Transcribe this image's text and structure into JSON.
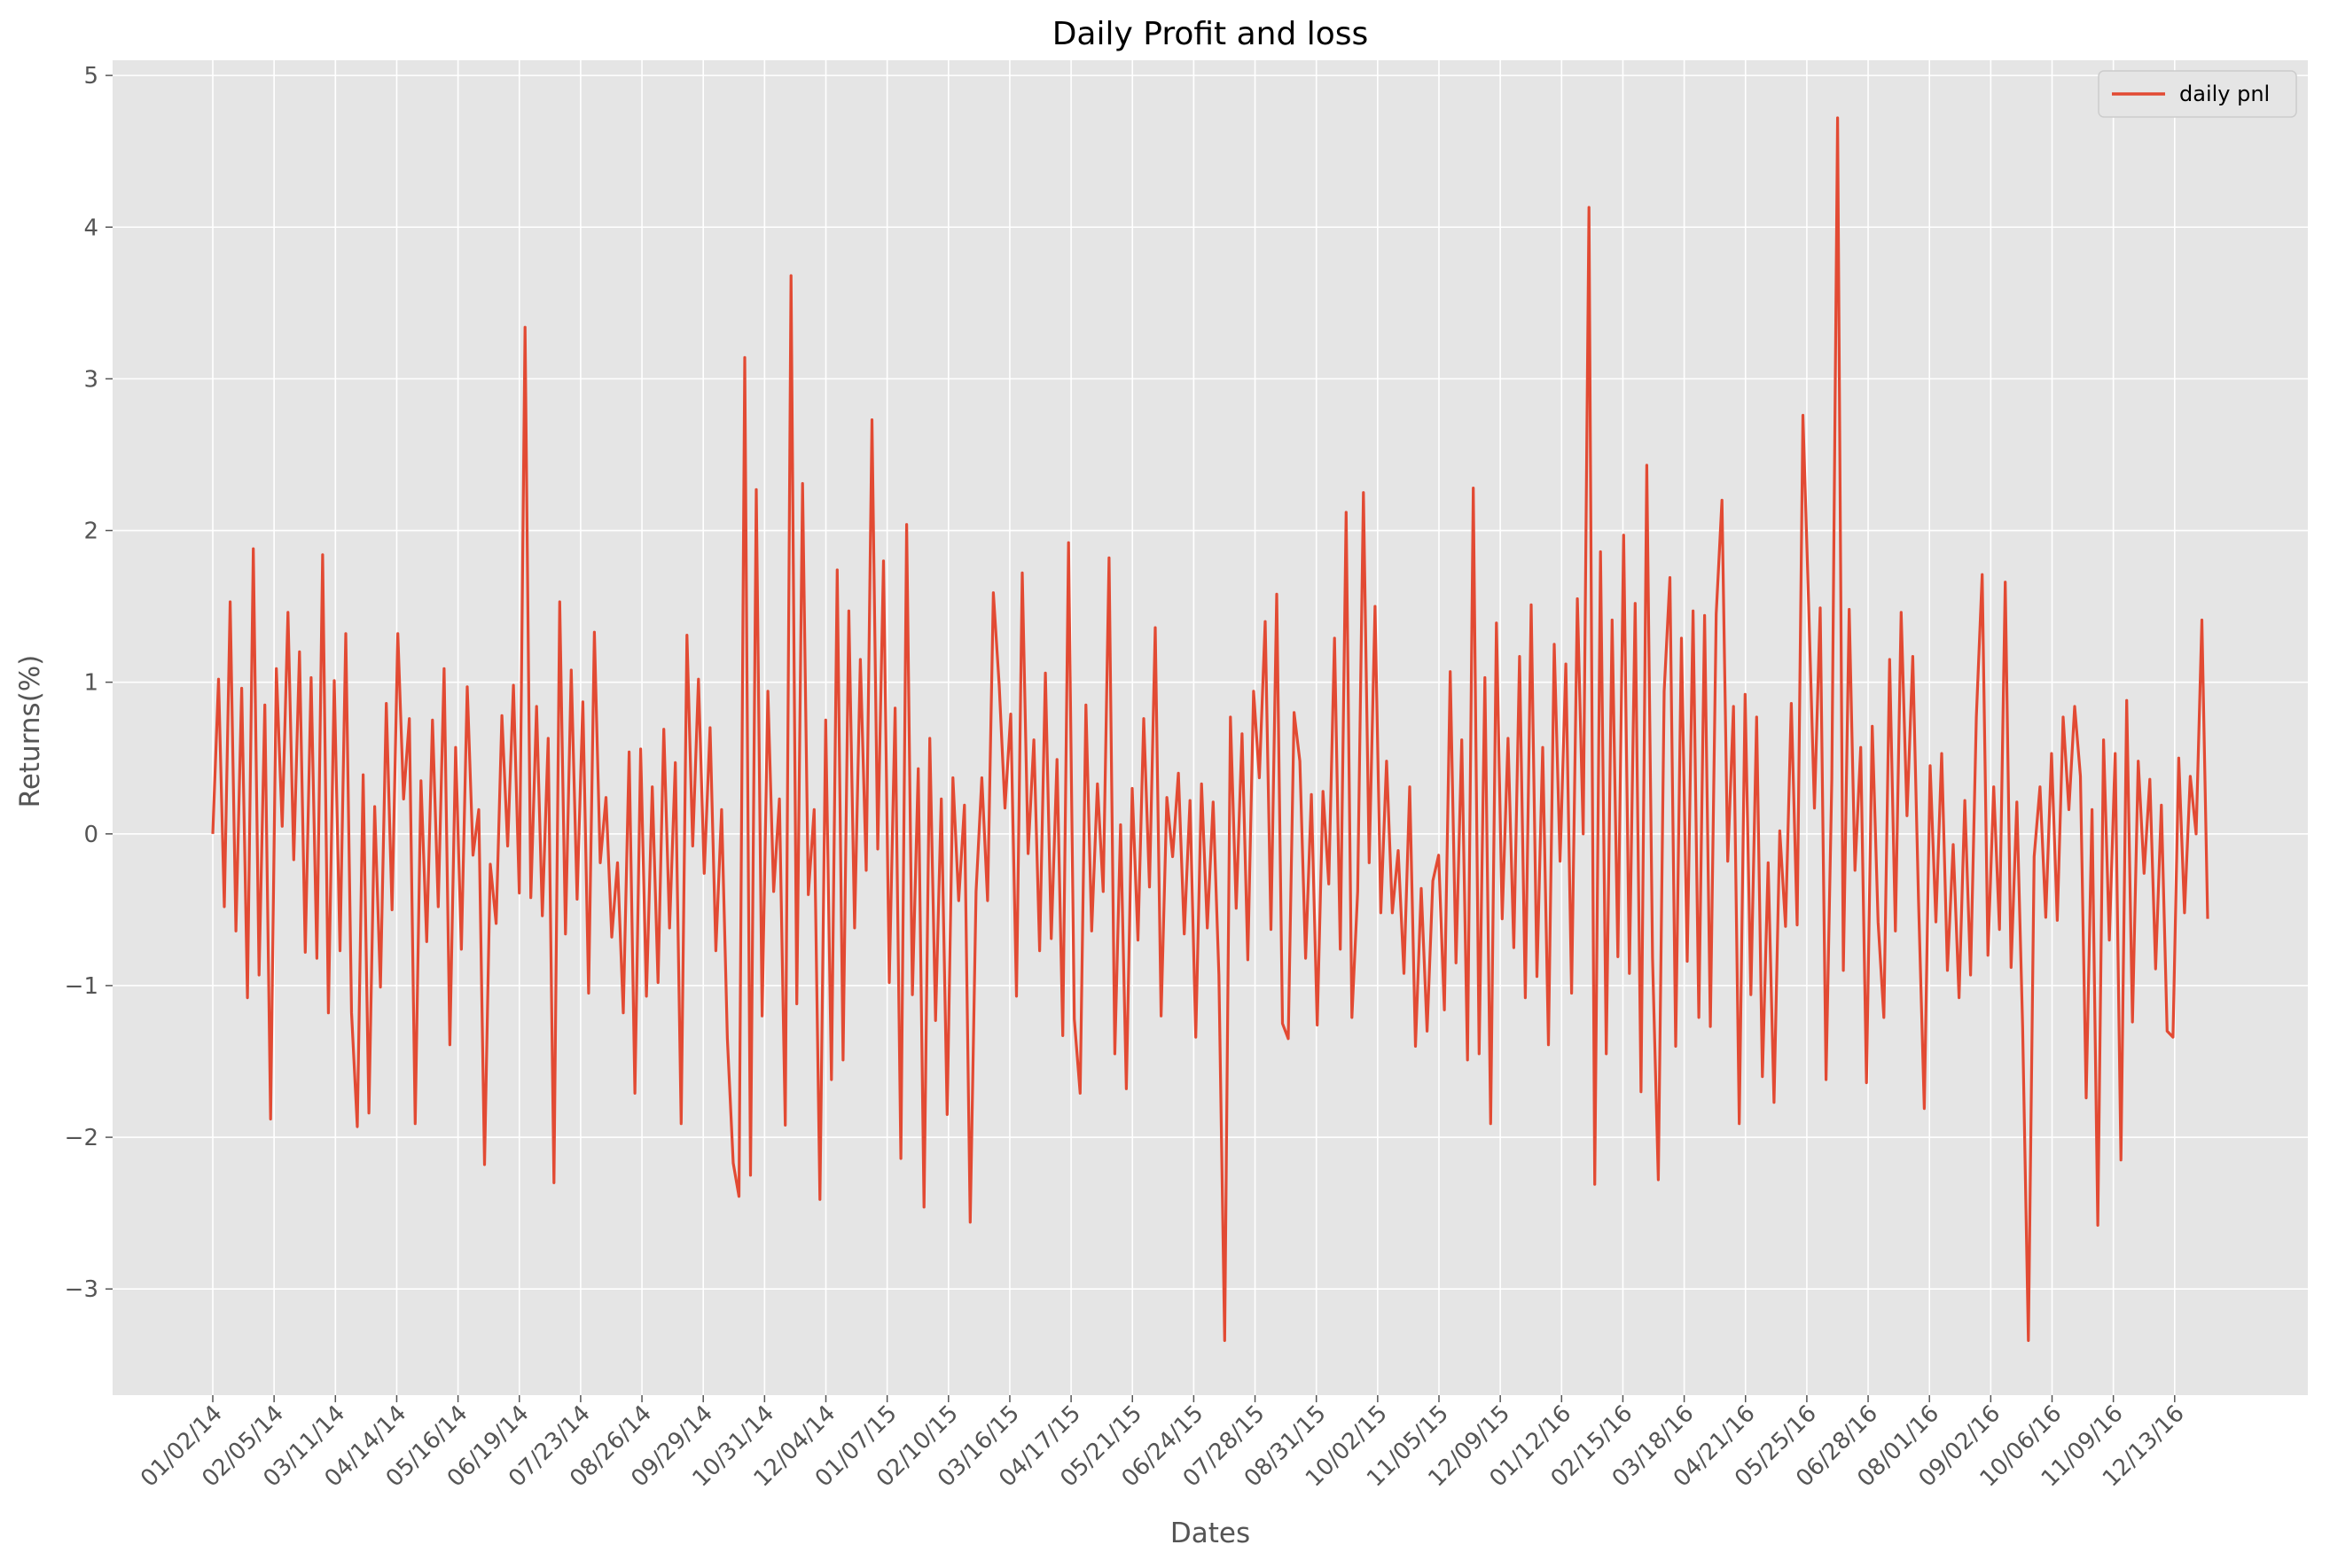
{
  "chart_data": {
    "type": "line",
    "title": "Daily Profit and loss",
    "xlabel": "Dates",
    "ylabel": "Returns(%)",
    "ylim": [
      -3.7,
      5.1
    ],
    "yticks": [
      -3,
      -2,
      -1,
      0,
      1,
      2,
      3,
      4,
      5
    ],
    "ytick_labels": [
      "−3",
      "−2",
      "−1",
      "0",
      "1",
      "2",
      "3",
      "4",
      "5"
    ],
    "xticks": [
      "01/02/14",
      "02/05/14",
      "03/11/14",
      "04/14/14",
      "05/16/14",
      "06/19/14",
      "07/23/14",
      "08/26/14",
      "09/29/14",
      "10/31/14",
      "12/04/14",
      "01/07/15",
      "02/10/15",
      "03/16/15",
      "04/17/15",
      "05/21/15",
      "06/24/15",
      "07/28/15",
      "08/31/15",
      "10/02/15",
      "11/05/15",
      "12/09/15",
      "01/12/16",
      "02/15/16",
      "03/18/16",
      "04/21/16",
      "05/25/16",
      "06/28/16",
      "08/01/16",
      "09/02/16",
      "10/06/16",
      "11/09/16",
      "12/13/16"
    ],
    "x_step_days": 24,
    "grid": true,
    "background": "#E5E5E5",
    "legend": {
      "position": "top-right",
      "entries": [
        "daily pnl"
      ]
    },
    "series": [
      {
        "name": "daily pnl",
        "color": "#E24A33",
        "values": [
          0.0,
          1.02,
          -0.48,
          1.53,
          -0.64,
          0.96,
          -1.08,
          1.88,
          -0.93,
          0.85,
          -1.88,
          1.09,
          0.05,
          1.46,
          -0.17,
          1.2,
          -0.78,
          1.03,
          -0.82,
          1.84,
          -1.18,
          1.01,
          -0.77,
          1.32,
          -1.18,
          -1.93,
          0.39,
          -1.84,
          0.18,
          -1.01,
          0.86,
          -0.5,
          1.32,
          0.23,
          0.76,
          -1.91,
          0.35,
          -0.71,
          0.75,
          -0.48,
          1.09,
          -1.39,
          0.57,
          -0.76,
          0.97,
          -0.14,
          0.16,
          -2.18,
          -0.2,
          -0.59,
          0.78,
          -0.08,
          0.98,
          -0.39,
          3.34,
          -0.42,
          0.84,
          -0.54,
          0.63,
          -2.3,
          1.53,
          -0.66,
          1.08,
          -0.43,
          0.87,
          -1.05,
          1.33,
          -0.19,
          0.24,
          -0.68,
          -0.19,
          -1.18,
          0.54,
          -1.71,
          0.56,
          -1.07,
          0.31,
          -0.98,
          0.69,
          -0.62,
          0.47,
          -1.91,
          1.31,
          -0.08,
          1.02,
          -0.26,
          0.7,
          -0.77,
          0.16,
          -1.35,
          -2.17,
          -2.39,
          3.14,
          -2.25,
          2.27,
          -1.2,
          0.94,
          -0.38,
          0.23,
          -1.92,
          3.68,
          -1.12,
          2.31,
          -0.4,
          0.16,
          -2.41,
          0.75,
          -1.62,
          1.74,
          -1.49,
          1.47,
          -0.62,
          1.15,
          -0.24,
          2.73,
          -0.1,
          1.8,
          -0.98,
          0.83,
          -2.14,
          2.04,
          -1.06,
          0.43,
          -2.46,
          0.63,
          -1.23,
          0.23,
          -1.85,
          0.37,
          -0.44,
          0.19,
          -2.56,
          -0.38,
          0.37,
          -0.44,
          1.59,
          0.98,
          0.17,
          0.79,
          -1.07,
          1.72,
          -0.13,
          0.62,
          -0.77,
          1.06,
          -0.69,
          0.49,
          -1.33,
          1.92,
          -1.22,
          -1.71,
          0.85,
          -0.64,
          0.33,
          -0.38,
          1.82,
          -1.45,
          0.06,
          -1.68,
          0.3,
          -0.7,
          0.76,
          -0.35,
          1.36,
          -1.2,
          0.24,
          -0.15,
          0.4,
          -0.66,
          0.22,
          -1.34,
          0.33,
          -0.62,
          0.21,
          -0.93,
          -3.34,
          0.77,
          -0.49,
          0.66,
          -0.83,
          0.94,
          0.37,
          1.4,
          -0.63,
          1.58,
          -1.25,
          -1.35,
          0.8,
          0.48,
          -0.82,
          0.26,
          -1.26,
          0.28,
          -0.33,
          1.29,
          -0.76,
          2.12,
          -1.21,
          -0.38,
          2.25,
          -0.19,
          1.5,
          -0.52,
          0.48,
          -0.52,
          -0.11,
          -0.92,
          0.31,
          -1.4,
          -0.36,
          -1.3,
          -0.31,
          -0.14,
          -1.16,
          1.07,
          -0.85,
          0.62,
          -1.49,
          2.28,
          -1.45,
          1.03,
          -1.91,
          1.39,
          -0.56,
          0.63,
          -0.75,
          1.17,
          -1.08,
          1.51,
          -0.94,
          0.57,
          -1.39,
          1.25,
          -0.18,
          1.12,
          -1.05,
          1.55,
          0.0,
          4.13,
          -2.31,
          1.86,
          -1.45,
          1.41,
          -0.81,
          1.97,
          -0.92,
          1.52,
          -1.7,
          2.43,
          -0.82,
          -2.28,
          0.94,
          1.69,
          -1.4,
          1.29,
          -0.84,
          1.47,
          -1.21,
          1.44,
          -1.27,
          1.45,
          2.2,
          -0.18,
          0.84,
          -1.91,
          0.92,
          -1.06,
          0.77,
          -1.6,
          -0.19,
          -1.77,
          0.02,
          -0.61,
          0.86,
          -0.6,
          2.76,
          1.51,
          0.17,
          1.49,
          -1.62,
          0.36,
          4.72,
          -0.9,
          1.48,
          -0.24,
          0.57,
          -1.64,
          0.71,
          -0.58,
          -1.21,
          1.15,
          -0.64,
          1.46,
          0.12,
          1.17,
          -0.44,
          -1.81,
          0.45,
          -0.58,
          0.53,
          -0.9,
          -0.07,
          -1.08,
          0.22,
          -0.93,
          0.77,
          1.71,
          -0.8,
          0.31,
          -0.63,
          1.66,
          -0.88,
          0.21,
          -1.27,
          -3.34,
          -0.15,
          0.31,
          -0.55,
          0.53,
          -0.57,
          0.77,
          0.16,
          0.84,
          0.38,
          -1.74,
          0.16,
          -2.58,
          0.62,
          -0.7,
          0.53,
          -2.15,
          0.88,
          -1.24,
          0.48,
          -0.26,
          0.36,
          -0.89,
          0.19,
          -1.3,
          -1.34,
          0.5,
          -0.52,
          0.38,
          0.0,
          1.41,
          -0.56
        ]
      }
    ]
  }
}
